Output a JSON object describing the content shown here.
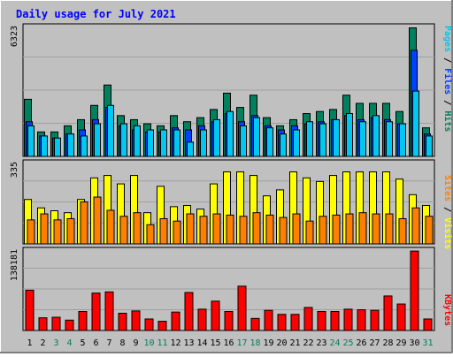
{
  "title": "Daily usage for July 2021",
  "colors": {
    "background": "#c0c0c0",
    "title": "#0000ff",
    "hits": "#00805c",
    "files": "#0040ff",
    "pages": "#00c8f0",
    "visits": "#ffff00",
    "sites": "#ff8000",
    "kbytes": "#ff0000",
    "weekend_label": "#00805c",
    "weekday_label": "#000000"
  },
  "chart_data": [
    {
      "type": "bar",
      "name": "hits-files-pages",
      "ymax_label": "6323",
      "ylim": [
        0,
        6323
      ],
      "legend": [
        "Pages",
        "Files",
        "Hits"
      ],
      "categories": [
        "1",
        "2",
        "3",
        "4",
        "5",
        "6",
        "7",
        "8",
        "9",
        "10",
        "11",
        "12",
        "13",
        "14",
        "15",
        "16",
        "17",
        "18",
        "19",
        "20",
        "21",
        "22",
        "23",
        "24",
        "25",
        "26",
        "27",
        "28",
        "29",
        "30",
        "31"
      ],
      "series": [
        {
          "name": "Hits",
          "values": [
            2800,
            1200,
            1200,
            1500,
            1800,
            2500,
            3500,
            2000,
            1800,
            1600,
            1500,
            2000,
            1700,
            1900,
            2300,
            3100,
            2400,
            3000,
            1900,
            1500,
            1800,
            2100,
            2200,
            2300,
            3000,
            2600,
            2600,
            2600,
            2200,
            6300,
            1400
          ]
        },
        {
          "name": "Files",
          "values": [
            1700,
            1000,
            900,
            1100,
            1300,
            1800,
            2400,
            1500,
            1300,
            1200,
            1200,
            1400,
            1300,
            1500,
            1700,
            2100,
            1700,
            2000,
            1500,
            1300,
            1500,
            1600,
            1700,
            1800,
            2000,
            1800,
            1900,
            1800,
            1600,
            5200,
            1100
          ]
        },
        {
          "name": "Pages",
          "values": [
            1500,
            1000,
            900,
            1100,
            1000,
            1600,
            2500,
            1600,
            1500,
            1300,
            1300,
            1300,
            700,
            1300,
            1800,
            2200,
            1500,
            1900,
            1400,
            1100,
            1300,
            1700,
            1600,
            1800,
            2100,
            1700,
            2000,
            1700,
            1600,
            3200,
            1000
          ]
        }
      ]
    },
    {
      "type": "bar",
      "name": "visits-sites",
      "ymax_label": "335",
      "ylim": [
        0,
        335
      ],
      "legend": [
        "Sites",
        "Visits"
      ],
      "categories": [
        "1",
        "2",
        "3",
        "4",
        "5",
        "6",
        "7",
        "8",
        "9",
        "10",
        "11",
        "12",
        "13",
        "14",
        "15",
        "16",
        "17",
        "18",
        "19",
        "20",
        "21",
        "22",
        "23",
        "24",
        "25",
        "26",
        "27",
        "28",
        "29",
        "30",
        "31"
      ],
      "series": [
        {
          "name": "Visits",
          "values": [
            185,
            150,
            138,
            130,
            185,
            275,
            285,
            250,
            285,
            130,
            240,
            155,
            160,
            145,
            250,
            300,
            300,
            285,
            200,
            225,
            300,
            275,
            260,
            285,
            300,
            300,
            300,
            300,
            270,
            205,
            160
          ]
        },
        {
          "name": "Sites",
          "values": [
            100,
            125,
            100,
            105,
            175,
            195,
            140,
            115,
            130,
            80,
            105,
            95,
            125,
            115,
            125,
            120,
            115,
            130,
            120,
            110,
            125,
            95,
            115,
            120,
            125,
            130,
            125,
            125,
            105,
            150,
            115
          ]
        }
      ]
    },
    {
      "type": "bar",
      "name": "kbytes",
      "ymax_label": "138181",
      "ylim": [
        0,
        138181
      ],
      "legend": [
        "KBytes"
      ],
      "categories": [
        "1",
        "2",
        "3",
        "4",
        "5",
        "6",
        "7",
        "8",
        "9",
        "10",
        "11",
        "12",
        "13",
        "14",
        "15",
        "16",
        "17",
        "18",
        "19",
        "20",
        "21",
        "22",
        "23",
        "24",
        "25",
        "26",
        "27",
        "28",
        "29",
        "30",
        "31"
      ],
      "series": [
        {
          "name": "KBytes",
          "values": [
            70000,
            22000,
            23000,
            18000,
            33000,
            65000,
            67000,
            30000,
            34000,
            20000,
            16000,
            32000,
            66000,
            37000,
            51000,
            33000,
            77000,
            21000,
            35000,
            28000,
            28000,
            40000,
            33000,
            33000,
            37000,
            36000,
            35000,
            60000,
            46000,
            138000,
            20000
          ]
        }
      ]
    }
  ],
  "x_labels": {
    "days": [
      "1",
      "2",
      "3",
      "4",
      "5",
      "6",
      "7",
      "8",
      "9",
      "10",
      "11",
      "12",
      "13",
      "14",
      "15",
      "16",
      "17",
      "18",
      "19",
      "20",
      "21",
      "22",
      "23",
      "24",
      "25",
      "26",
      "27",
      "28",
      "29",
      "30",
      "31"
    ],
    "weekend": [
      false,
      false,
      true,
      true,
      false,
      false,
      false,
      false,
      false,
      true,
      true,
      false,
      false,
      false,
      false,
      false,
      true,
      true,
      false,
      false,
      false,
      false,
      false,
      true,
      true,
      false,
      false,
      false,
      false,
      false,
      true
    ]
  }
}
